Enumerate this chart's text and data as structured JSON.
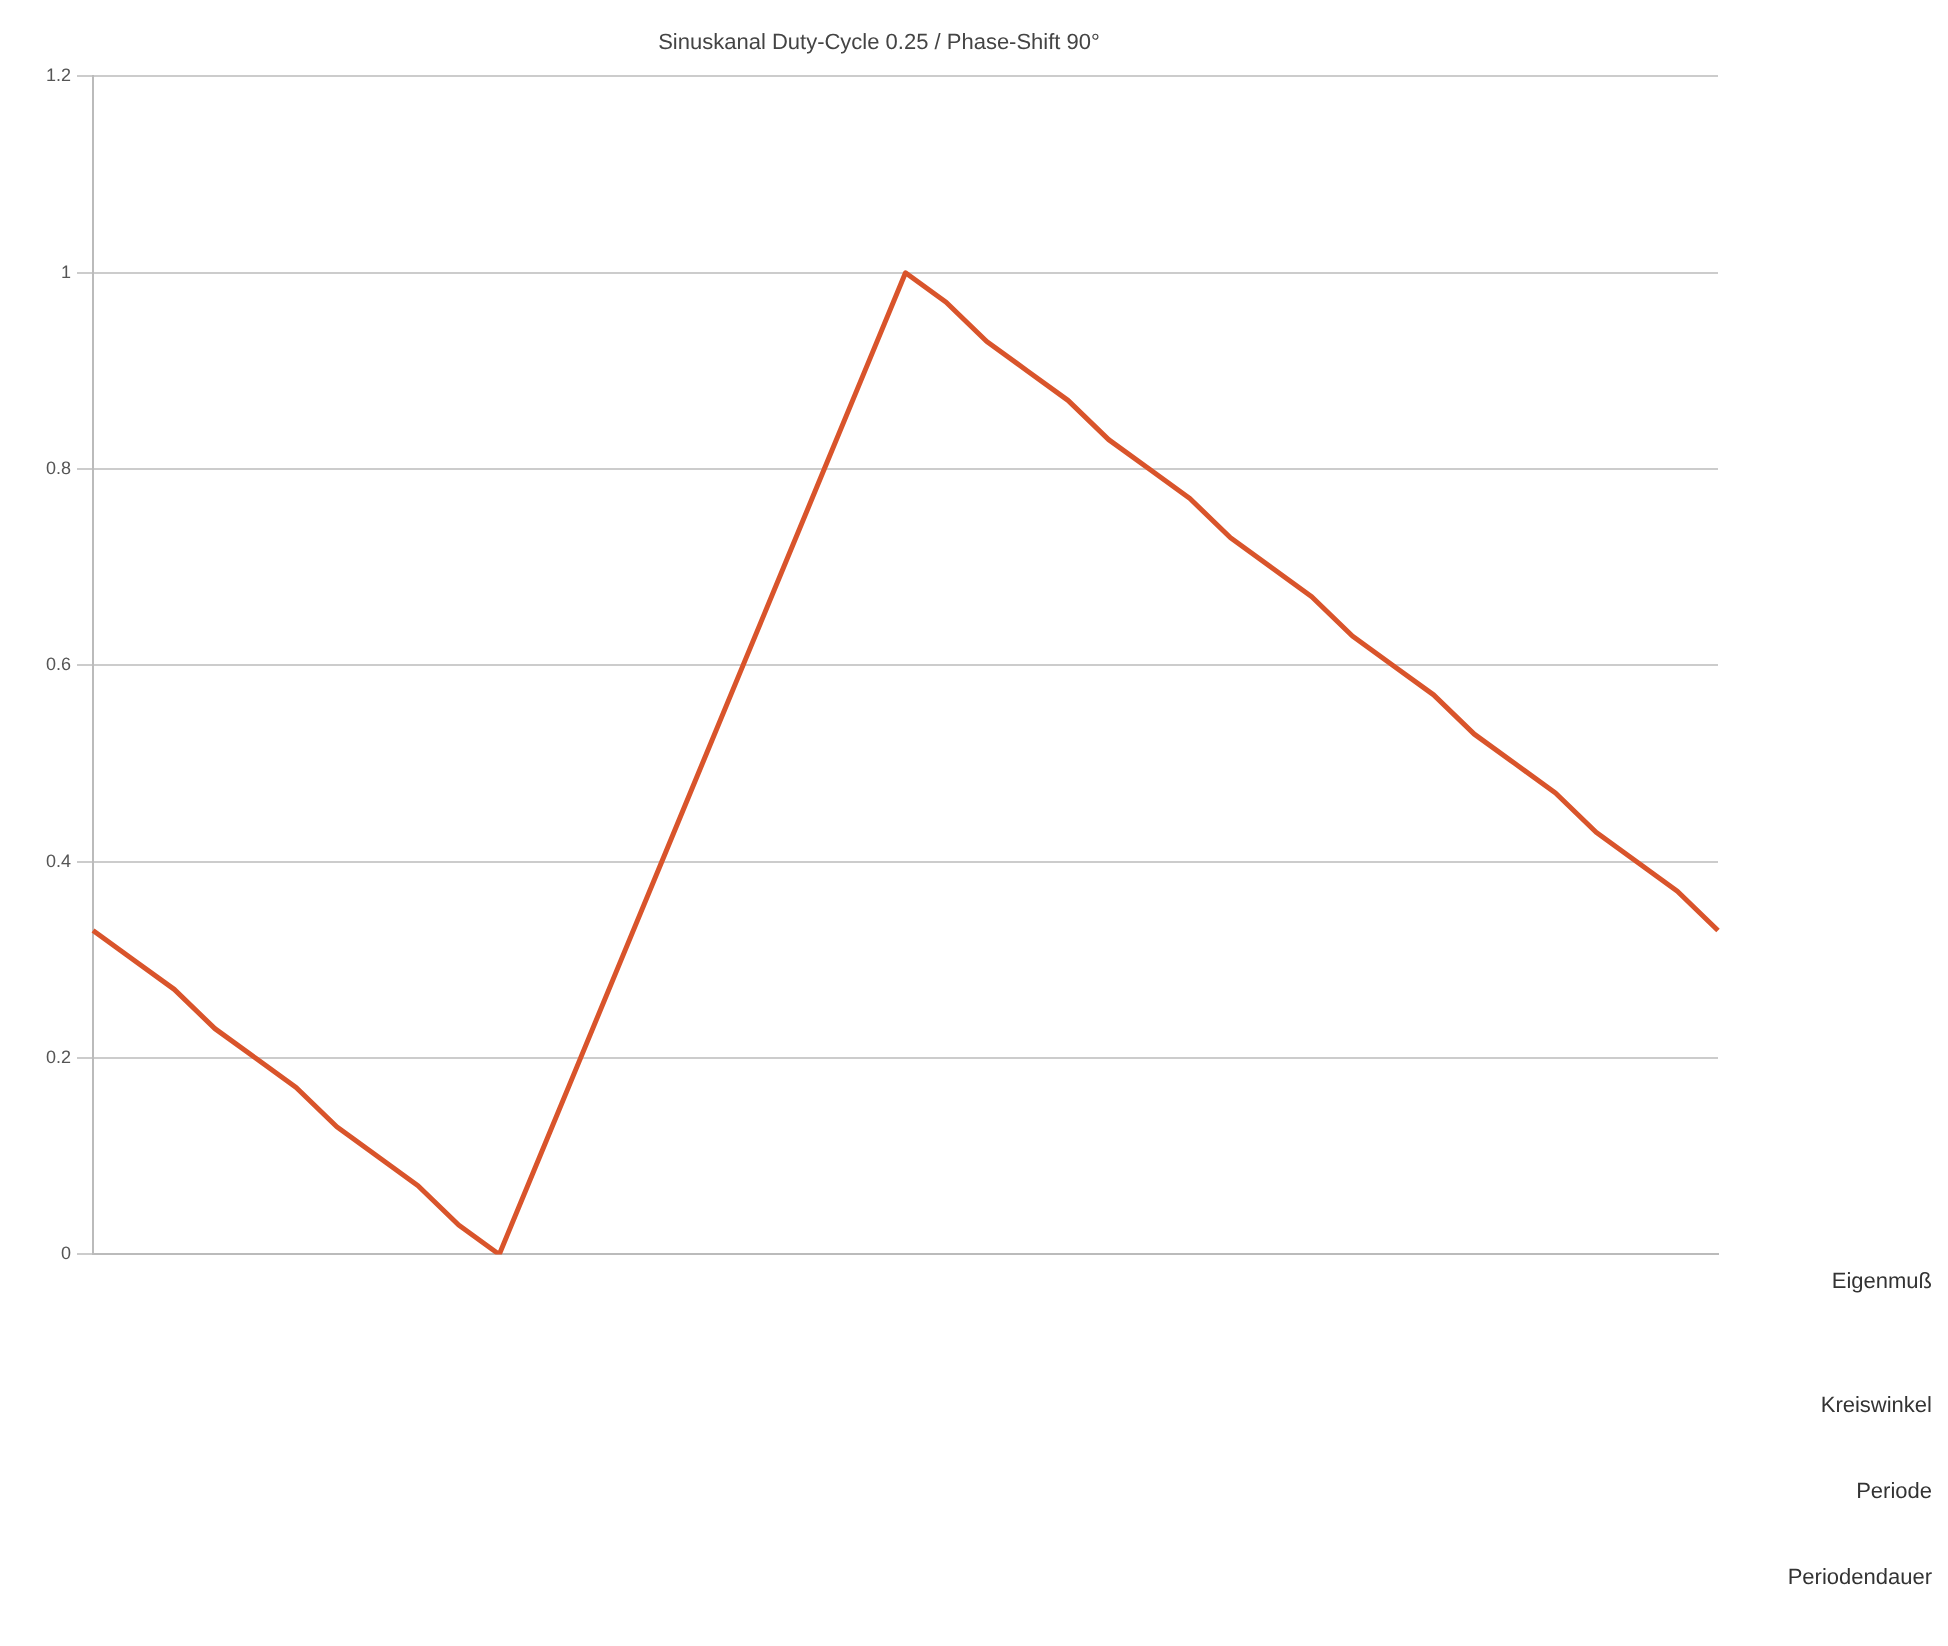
{
  "chart_data": {
    "type": "line",
    "title": "Sinuskanal Duty-Cycle 0.25 / Phase-Shift 90°",
    "categories": [
      null,
      null,
      null,
      null,
      null,
      null,
      null,
      null,
      null,
      null,
      null,
      null,
      null,
      null,
      null,
      null,
      null,
      null,
      null,
      null,
      null,
      null,
      null,
      null,
      null,
      null,
      null,
      null,
      null,
      null,
      null,
      null,
      null,
      null,
      null,
      null,
      null,
      null,
      null,
      null,
      null
    ],
    "series": [
      {
        "color": "#d9542b",
        "values": [
          0.33,
          0.3,
          0.27,
          0.23,
          0.2,
          0.17,
          0.13,
          0.1,
          0.07,
          0.03,
          0,
          0.1,
          0.2,
          0.3,
          0.4,
          0.5,
          0.6,
          0.7,
          0.8,
          0.9,
          1,
          0.97,
          0.93,
          0.9,
          0.87,
          0.83,
          0.8,
          0.77,
          0.73,
          0.7,
          0.67,
          0.63,
          0.6,
          0.57,
          0.53,
          0.5,
          0.47,
          0.43,
          0.4,
          0.37,
          0.33
        ]
      }
    ],
    "ylim": [
      0,
      1.2
    ],
    "yticks": [
      0,
      0.2,
      0.4,
      0.6,
      0.8,
      1,
      1.2
    ],
    "grid": "y",
    "legend": false,
    "marker": "none",
    "line_style": "solid",
    "annotations": [
      "Eigenmuß",
      "Kreiswinkel",
      "Periode",
      "Periodendauer"
    ]
  }
}
